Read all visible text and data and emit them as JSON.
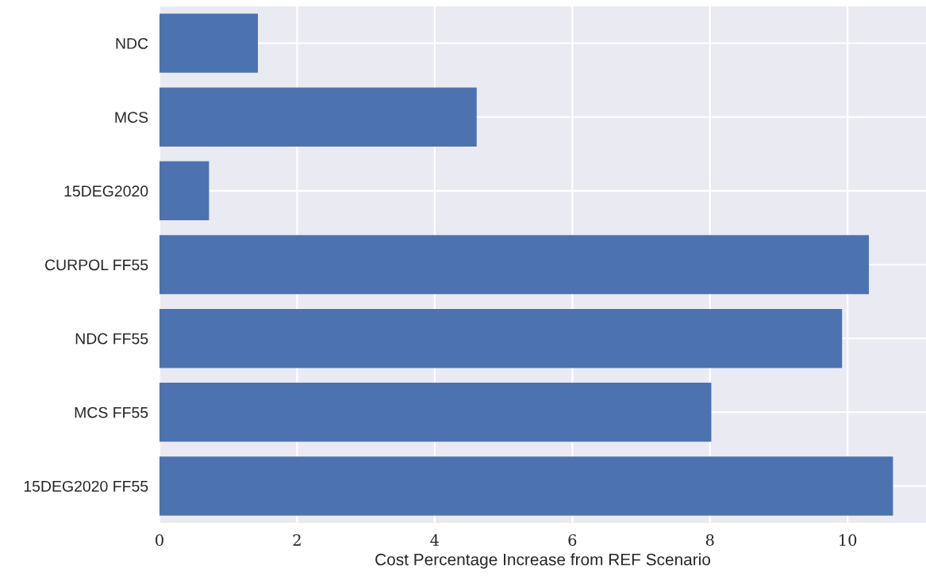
{
  "chart_data": {
    "type": "bar",
    "orientation": "horizontal",
    "xlabel": "Cost Percentage Increase from REF Scenario",
    "categories": [
      "NDC",
      "MCS",
      "15DEG2020",
      "CURPOL FF55",
      "NDC FF55",
      "MCS FF55",
      "15DEG2020 FF55"
    ],
    "values": [
      1.43,
      4.61,
      0.72,
      10.31,
      9.92,
      8.02,
      10.66
    ],
    "color": "#4c72b0",
    "xlim": [
      0,
      11.14
    ],
    "xticks": [
      0,
      2,
      4,
      6,
      8,
      10
    ],
    "grid": true
  }
}
